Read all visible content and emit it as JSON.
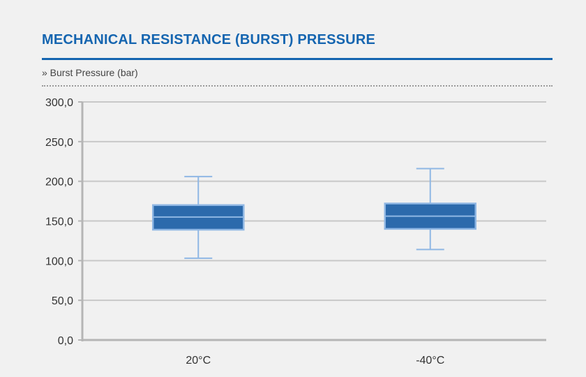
{
  "header": {
    "title": "MECHANICAL RESISTANCE (BURST) PRESSURE",
    "subtitle": "» Burst Pressure (bar)"
  },
  "chart_data": {
    "type": "box",
    "ylabel": "Burst Pressure (bar)",
    "ylim": [
      0,
      300
    ],
    "yticks": [
      0,
      50,
      100,
      150,
      200,
      250,
      300
    ],
    "ytick_labels": [
      "0,0",
      "50,0",
      "100,0",
      "150,0",
      "200,0",
      "250,0",
      "300,0"
    ],
    "grid": true,
    "categories": [
      "20°C",
      "-40°C"
    ],
    "boxes": [
      {
        "category": "20°C",
        "min": 103,
        "q1": 139,
        "median": 155,
        "q3": 170,
        "max": 206
      },
      {
        "category": "-40°C",
        "min": 114,
        "q1": 140,
        "median": 156,
        "q3": 172,
        "max": 216
      }
    ],
    "colors": {
      "box_fill": "#2c6aac",
      "box_edge": "#8fb7e4",
      "grid": "#c8c8c8",
      "axis": "#b5b5b5"
    }
  }
}
